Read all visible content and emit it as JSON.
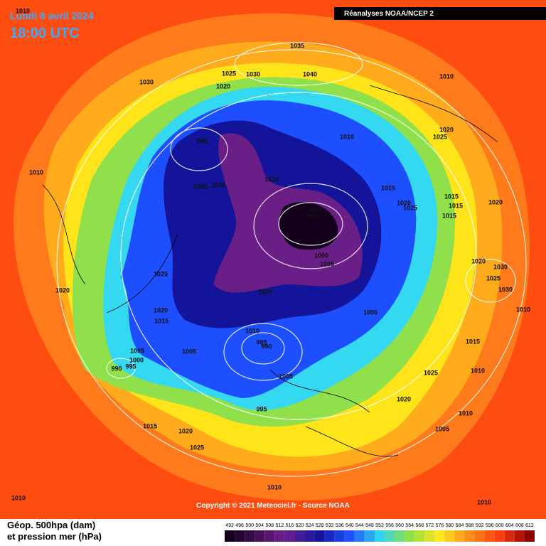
{
  "header": {
    "date": "Lundi 8 avril 2024",
    "time": "18:00 UTC",
    "source_badge": "Réanalyses NOAA/NCEP 2"
  },
  "pressure_labels": [
    1010,
    1035,
    1025,
    1030,
    1040,
    1010,
    1030,
    1020,
    1010,
    995,
    1020,
    1025,
    1010,
    1015,
    1000,
    1005,
    1015,
    1020,
    1025,
    1015,
    1015,
    1020,
    995,
    990,
    1015,
    1000,
    1005,
    1020,
    1030,
    1025,
    1025,
    1030,
    1020,
    1020,
    1010,
    1020,
    1005,
    1015,
    1010,
    995,
    990,
    1015,
    1005,
    1005,
    1000,
    995,
    990,
    1025,
    1010,
    1005,
    1020,
    995,
    1010,
    1015,
    1005,
    1020,
    1025,
    1010,
    1010,
    1010
  ],
  "footer": {
    "copyright": "Copyright © 2021 Meteociel.fr - Source NOAA",
    "legend_line1": "Géop. 500hpa (dam)",
    "legend_line2": "et pression mer (hPa)"
  },
  "colorbar": {
    "values": [
      492,
      496,
      500,
      504,
      508,
      512,
      516,
      520,
      524,
      528,
      532,
      536,
      540,
      544,
      548,
      552,
      556,
      560,
      564,
      568,
      572,
      576,
      580,
      584,
      588,
      592,
      596,
      600,
      604,
      608,
      612
    ]
  }
}
